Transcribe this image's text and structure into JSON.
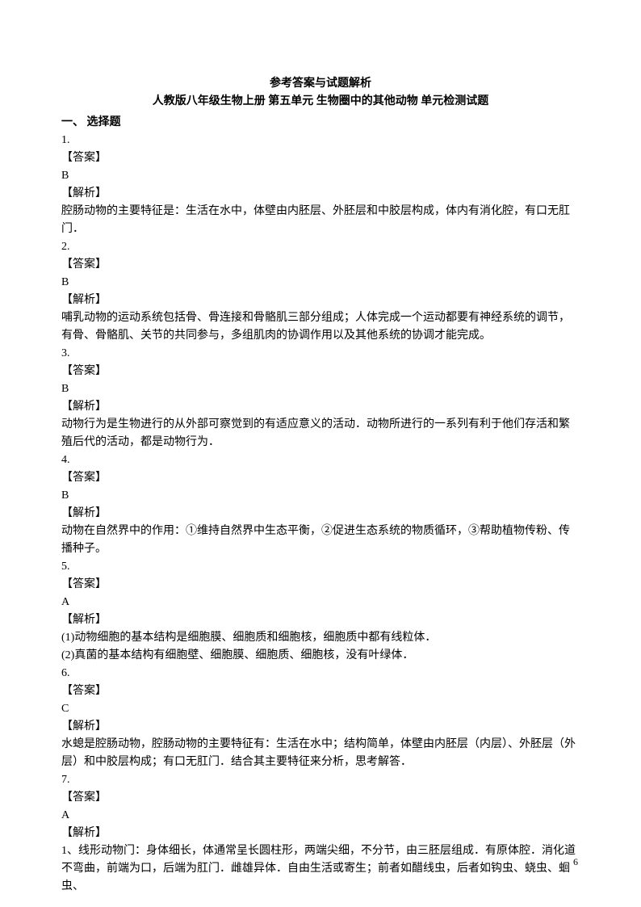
{
  "header": {
    "title": "参考答案与试题解析",
    "subtitle": "人教版八年级生物上册  第五单元  生物圈中的其他动物  单元检测试题"
  },
  "section": {
    "title": "一、  选择题"
  },
  "questions": [
    {
      "num": "1.",
      "answerLabel": "【答案】",
      "answer": "B",
      "explainLabel": "【解析】",
      "explain": [
        "腔肠动物的主要特征是：生活在水中，体壁由内胚层、外胚层和中胶层构成，体内有消化腔，有口无肛门．"
      ]
    },
    {
      "num": "2.",
      "answerLabel": "【答案】",
      "answer": "B",
      "explainLabel": "【解析】",
      "explain": [
        "哺乳动物的运动系统包括骨、骨连接和骨骼肌三部分组成；人体完成一个运动都要有神经系统的调节，有骨、骨骼肌、关节的共同参与，多组肌肉的协调作用以及其他系统的协调才能完成。"
      ]
    },
    {
      "num": "3.",
      "answerLabel": "【答案】",
      "answer": "B",
      "explainLabel": "【解析】",
      "explain": [
        "动物行为是生物进行的从外部可察觉到的有适应意义的活动．动物所进行的一系列有利于他们存活和繁殖后代的活动，都是动物行为．"
      ]
    },
    {
      "num": "4.",
      "answerLabel": "【答案】",
      "answer": "B",
      "explainLabel": "【解析】",
      "explain": [
        "动物在自然界中的作用：①维持自然界中生态平衡，②促进生态系统的物质循环，③帮助植物传粉、传播种子。"
      ]
    },
    {
      "num": "5.",
      "answerLabel": "【答案】",
      "answer": "A",
      "explainLabel": "【解析】",
      "explain": [
        "(1)动物细胞的基本结构是细胞膜、细胞质和细胞核，细胞质中都有线粒体．",
        "(2)真菌的基本结构有细胞壁、细胞膜、细胞质、细胞核，没有叶绿体．"
      ]
    },
    {
      "num": "6.",
      "answerLabel": "【答案】",
      "answer": "C",
      "explainLabel": "【解析】",
      "explain": [
        "水螅是腔肠动物，腔肠动物的主要特征有：生活在水中；结构简单，体壁由内胚层（内层）、外胚层（外层）和中胶层构成；有口无肛门．结合其主要特征来分析，思考解答．"
      ]
    },
    {
      "num": "7.",
      "answerLabel": "【答案】",
      "answer": "A",
      "explainLabel": "【解析】",
      "explain": [
        "1、线形动物门：身体细长，体通常呈长圆柱形，两端尖细，不分节，由三胚层组成．有原体腔．消化道不弯曲，前端为口，后端为肛门．雌雄异体．自由生活或寄生；前者如醋线虫，后者如钩虫、蛲虫、蛔虫、"
      ]
    }
  ],
  "pageNumber": "6",
  "styles": {
    "bodyWidth": 794,
    "bodyHeight": 1123,
    "backgroundColor": "#ffffff",
    "textColor": "#000000",
    "fontSize": 14,
    "lineHeight": 22
  }
}
